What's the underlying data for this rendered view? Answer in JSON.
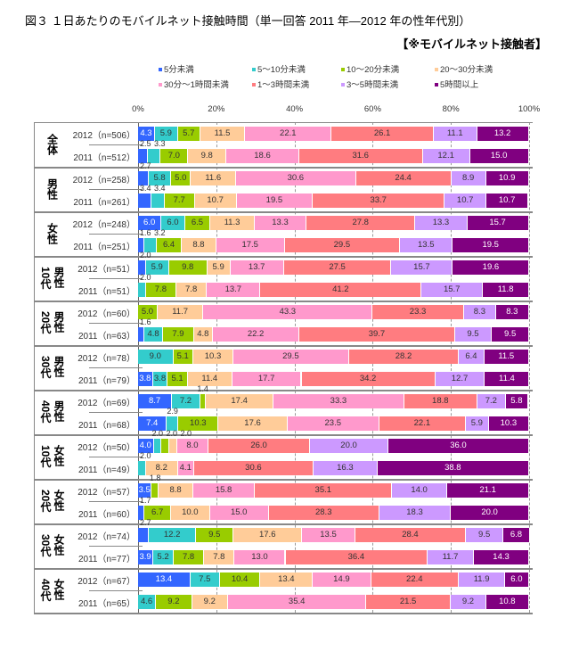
{
  "title": "図３ １日あたりのモバイルネット接触時間（単一回答 2011 年―2012 年の性年代別）",
  "subtitle": "【※モバイルネット接触者】",
  "chart_data": {
    "type": "bar",
    "orientation": "horizontal-stacked-100",
    "title": "図３ １日あたりのモバイルネット接触時間（単一回答 2011 年―2012 年の性年代別）",
    "xlim": [
      0,
      100
    ],
    "x_ticks": [
      "0%",
      "20%",
      "40%",
      "60%",
      "80%",
      "100%"
    ],
    "grid": "vertical dashed",
    "legend_position": "top",
    "series": [
      {
        "name": "5分未満",
        "color": "#3366ff"
      },
      {
        "name": "5～10分未満",
        "color": "#33cccc"
      },
      {
        "name": "10～20分未満",
        "color": "#99cc00"
      },
      {
        "name": "20～30分未満",
        "color": "#ffcc99"
      },
      {
        "name": "30分～1時間未満",
        "color": "#ff99cc"
      },
      {
        "name": "1～3時間未満",
        "color": "#ff7c80"
      },
      {
        "name": "3～5時間未満",
        "color": "#cc99ff"
      },
      {
        "name": "5時間以上",
        "color": "#800080"
      }
    ],
    "groups": [
      {
        "label": "全体",
        "rows": [
          {
            "label": "2012（n=506）",
            "values": [
              4.3,
              5.9,
              5.7,
              11.5,
              22.1,
              26.1,
              11.1,
              13.2
            ]
          },
          {
            "label": "2011（n=512）",
            "values": [
              2.5,
              3.3,
              7.0,
              9.8,
              18.6,
              31.6,
              12.1,
              15.0
            ]
          }
        ]
      },
      {
        "label": "男性",
        "rows": [
          {
            "label": "2012（n=258）",
            "values": [
              2.7,
              5.8,
              5.0,
              11.6,
              30.6,
              24.4,
              8.9,
              10.9
            ]
          },
          {
            "label": "2011（n=261）",
            "values": [
              3.4,
              3.4,
              7.7,
              10.7,
              19.5,
              33.7,
              10.7,
              10.7
            ]
          }
        ]
      },
      {
        "label": "女性",
        "rows": [
          {
            "label": "2012（n=248）",
            "values": [
              6.0,
              6.0,
              6.5,
              11.3,
              13.3,
              27.8,
              13.3,
              15.7
            ]
          },
          {
            "label": "2011（n=251）",
            "values": [
              1.6,
              3.2,
              6.4,
              8.8,
              17.5,
              29.5,
              13.5,
              19.5
            ]
          }
        ]
      },
      {
        "label": "男性\n10代",
        "rows": [
          {
            "label": "2012（n=51）",
            "values": [
              2.0,
              5.9,
              9.8,
              5.9,
              13.7,
              27.5,
              15.7,
              19.6
            ]
          },
          {
            "label": "2011（n=51）",
            "values": [
              0,
              2.0,
              7.8,
              7.8,
              13.7,
              41.2,
              15.7,
              11.8
            ]
          }
        ]
      },
      {
        "label": "男性\n20代",
        "rows": [
          {
            "label": "2012（n=60）",
            "values": [
              0,
              0,
              5.0,
              11.7,
              43.3,
              23.3,
              8.3,
              8.3
            ]
          },
          {
            "label": "2011（n=63）",
            "values": [
              1.6,
              4.8,
              7.9,
              4.8,
              22.2,
              39.7,
              9.5,
              9.5
            ]
          }
        ]
      },
      {
        "label": "男性\n30代",
        "rows": [
          {
            "label": "2012（n=78）",
            "values": [
              0,
              9.0,
              5.1,
              10.3,
              29.5,
              28.2,
              6.4,
              11.5
            ]
          },
          {
            "label": "2011（n=79）",
            "values": [
              3.8,
              3.8,
              5.1,
              11.4,
              17.7,
              34.2,
              12.7,
              11.4
            ]
          }
        ]
      },
      {
        "label": "男性\n40代",
        "rows": [
          {
            "label": "2012（n=69）",
            "values": [
              8.7,
              7.2,
              1.4,
              17.4,
              33.3,
              18.8,
              7.2,
              5.8
            ]
          },
          {
            "label": "2011（n=68）",
            "values": [
              7.4,
              2.9,
              10.3,
              17.6,
              23.5,
              22.1,
              5.9,
              10.3
            ]
          }
        ]
      },
      {
        "label": "女性\n10代",
        "rows": [
          {
            "label": "2012（n=50）",
            "values": [
              4.0,
              2.0,
              2.0,
              2.0,
              8.0,
              26.0,
              20.0,
              36.0
            ]
          },
          {
            "label": "2011（n=49）",
            "values": [
              0,
              2.0,
              0,
              8.2,
              4.1,
              30.6,
              16.3,
              38.8
            ]
          }
        ]
      },
      {
        "label": "女性\n20代",
        "rows": [
          {
            "label": "2012（n=57）",
            "values": [
              3.5,
              0,
              1.8,
              8.8,
              15.8,
              35.1,
              14.0,
              21.1
            ]
          },
          {
            "label": "2011（n=60）",
            "values": [
              1.7,
              0,
              6.7,
              10.0,
              15.0,
              28.3,
              18.3,
              20.0
            ]
          }
        ]
      },
      {
        "label": "女性\n30代",
        "rows": [
          {
            "label": "2012（n=74）",
            "values": [
              2.7,
              12.2,
              9.5,
              17.6,
              13.5,
              28.4,
              9.5,
              6.8
            ]
          },
          {
            "label": "2011（n=77）",
            "values": [
              3.9,
              5.2,
              7.8,
              7.8,
              13.0,
              36.4,
              11.7,
              14.3
            ]
          }
        ]
      },
      {
        "label": "女性\n40代",
        "rows": [
          {
            "label": "2012（n=67）",
            "values": [
              13.4,
              7.5,
              10.4,
              13.4,
              14.9,
              22.4,
              11.9,
              6.0
            ]
          },
          {
            "label": "2011（n=65）",
            "values": [
              0,
              4.6,
              9.2,
              9.2,
              35.4,
              21.5,
              9.2,
              10.8
            ]
          }
        ]
      }
    ]
  }
}
